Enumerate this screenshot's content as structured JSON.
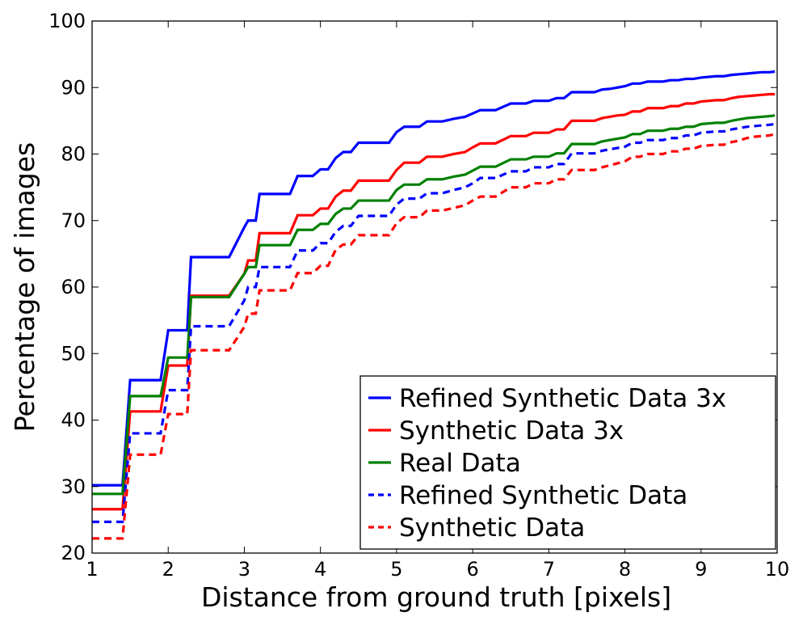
{
  "chart_data": {
    "type": "line",
    "title": "",
    "xlabel": "Distance from ground truth [pixels]",
    "ylabel": "Percentage of images",
    "xlim": [
      1,
      10
    ],
    "ylim": [
      20,
      100
    ],
    "xticks": [
      1,
      2,
      3,
      4,
      5,
      6,
      7,
      8,
      9,
      10
    ],
    "yticks": [
      20,
      30,
      40,
      50,
      60,
      70,
      80,
      90,
      100
    ],
    "grid": false,
    "legend_position": "lower-right",
    "series": [
      {
        "name": "Refined Synthetic Data 3x",
        "color": "#0000ff",
        "style": "solid",
        "x": [
          1.0,
          1.4,
          1.5,
          1.9,
          2.0,
          2.25,
          2.3,
          2.8,
          3.0,
          3.05,
          3.15,
          3.2,
          3.6,
          3.7,
          3.9,
          4.0,
          4.1,
          4.2,
          4.3,
          4.4,
          4.5,
          4.9,
          5.0,
          5.1,
          5.3,
          5.4,
          5.6,
          5.75,
          5.9,
          6.0,
          6.1,
          6.3,
          6.5,
          6.7,
          6.8,
          7.0,
          7.1,
          7.2,
          7.3,
          7.6,
          7.7,
          7.8,
          7.9,
          8.0,
          8.1,
          8.2,
          8.3,
          8.5,
          8.6,
          8.7,
          8.8,
          8.9,
          9.0,
          9.2,
          9.3,
          9.4,
          9.5,
          9.6,
          9.7,
          9.8,
          9.9,
          9.97
        ],
        "y": [
          30.2,
          30.2,
          46.0,
          46.0,
          53.5,
          53.5,
          64.5,
          64.5,
          69.0,
          70.0,
          70.0,
          74.0,
          74.0,
          76.7,
          76.7,
          77.7,
          77.7,
          79.4,
          80.3,
          80.3,
          81.7,
          81.7,
          83.3,
          84.1,
          84.1,
          84.9,
          84.9,
          85.3,
          85.6,
          86.1,
          86.6,
          86.6,
          87.6,
          87.6,
          88.0,
          88.0,
          88.4,
          88.4,
          89.3,
          89.3,
          89.7,
          89.8,
          90.0,
          90.2,
          90.6,
          90.6,
          90.9,
          90.9,
          91.1,
          91.1,
          91.3,
          91.3,
          91.5,
          91.7,
          91.7,
          91.9,
          92.0,
          92.1,
          92.2,
          92.3,
          92.3,
          92.4
        ]
      },
      {
        "name": "Synthetic Data 3x",
        "color": "#ff0000",
        "style": "solid",
        "x": [
          1.0,
          1.4,
          1.5,
          1.9,
          2.0,
          2.25,
          2.3,
          2.8,
          3.0,
          3.05,
          3.15,
          3.2,
          3.6,
          3.7,
          3.9,
          4.0,
          4.1,
          4.2,
          4.3,
          4.4,
          4.5,
          4.9,
          5.0,
          5.1,
          5.3,
          5.4,
          5.6,
          5.75,
          5.9,
          6.0,
          6.1,
          6.3,
          6.5,
          6.7,
          6.8,
          7.0,
          7.1,
          7.2,
          7.3,
          7.6,
          7.7,
          7.8,
          7.9,
          8.0,
          8.1,
          8.2,
          8.3,
          8.5,
          8.6,
          8.7,
          8.8,
          8.9,
          9.0,
          9.2,
          9.3,
          9.4,
          9.5,
          9.6,
          9.7,
          9.8,
          9.9,
          9.97
        ],
        "y": [
          26.6,
          26.6,
          41.3,
          41.3,
          48.2,
          48.2,
          58.7,
          58.7,
          62.0,
          64.0,
          64.0,
          68.1,
          68.1,
          70.8,
          70.8,
          71.8,
          71.8,
          73.6,
          74.5,
          74.5,
          76.0,
          76.0,
          77.6,
          78.7,
          78.7,
          79.6,
          79.6,
          80.0,
          80.3,
          81.0,
          81.6,
          81.6,
          82.7,
          82.7,
          83.2,
          83.2,
          83.7,
          83.7,
          85.0,
          85.0,
          85.4,
          85.6,
          85.8,
          85.9,
          86.4,
          86.4,
          86.9,
          86.9,
          87.2,
          87.2,
          87.6,
          87.6,
          87.9,
          88.1,
          88.1,
          88.4,
          88.6,
          88.7,
          88.8,
          88.9,
          89.0,
          89.0
        ]
      },
      {
        "name": "Real Data",
        "color": "#008000",
        "style": "solid",
        "x": [
          1.0,
          1.4,
          1.5,
          1.9,
          2.0,
          2.25,
          2.3,
          2.8,
          3.0,
          3.05,
          3.15,
          3.2,
          3.6,
          3.7,
          3.9,
          4.0,
          4.1,
          4.2,
          4.3,
          4.4,
          4.5,
          4.9,
          5.0,
          5.1,
          5.3,
          5.4,
          5.6,
          5.75,
          5.9,
          6.0,
          6.1,
          6.3,
          6.5,
          6.7,
          6.8,
          7.0,
          7.1,
          7.2,
          7.3,
          7.6,
          7.7,
          7.8,
          7.9,
          8.0,
          8.1,
          8.2,
          8.3,
          8.5,
          8.6,
          8.7,
          8.8,
          8.9,
          9.0,
          9.2,
          9.3,
          9.4,
          9.5,
          9.6,
          9.7,
          9.8,
          9.9,
          9.97
        ],
        "y": [
          28.9,
          28.9,
          43.6,
          43.6,
          49.4,
          49.4,
          58.5,
          58.5,
          62.0,
          63.0,
          63.0,
          66.3,
          66.3,
          68.6,
          68.6,
          69.5,
          69.5,
          71.0,
          71.8,
          71.8,
          73.0,
          73.0,
          74.6,
          75.4,
          75.4,
          76.2,
          76.2,
          76.6,
          76.9,
          77.5,
          78.1,
          78.1,
          79.2,
          79.2,
          79.6,
          79.6,
          80.1,
          80.1,
          81.5,
          81.5,
          81.9,
          82.1,
          82.3,
          82.5,
          83.0,
          83.0,
          83.5,
          83.5,
          83.8,
          83.8,
          84.1,
          84.1,
          84.5,
          84.7,
          84.7,
          85.0,
          85.2,
          85.4,
          85.5,
          85.6,
          85.7,
          85.8
        ]
      },
      {
        "name": "Refined Synthetic Data",
        "color": "#0000ff",
        "style": "dashed",
        "x": [
          1.0,
          1.4,
          1.5,
          1.9,
          2.0,
          2.25,
          2.3,
          2.8,
          3.0,
          3.05,
          3.15,
          3.2,
          3.6,
          3.7,
          3.9,
          4.0,
          4.1,
          4.2,
          4.3,
          4.4,
          4.5,
          4.9,
          5.0,
          5.1,
          5.3,
          5.4,
          5.6,
          5.75,
          5.9,
          6.0,
          6.1,
          6.3,
          6.5,
          6.7,
          6.8,
          7.0,
          7.1,
          7.2,
          7.3,
          7.6,
          7.7,
          7.8,
          7.9,
          8.0,
          8.1,
          8.2,
          8.3,
          8.5,
          8.6,
          8.7,
          8.8,
          8.9,
          9.0,
          9.2,
          9.3,
          9.4,
          9.5,
          9.6,
          9.7,
          9.8,
          9.9,
          9.97
        ],
        "y": [
          24.7,
          24.7,
          38.0,
          38.0,
          44.5,
          44.5,
          54.1,
          54.1,
          58.0,
          60.0,
          60.0,
          63.0,
          63.0,
          65.5,
          65.5,
          66.6,
          66.6,
          68.3,
          69.2,
          69.2,
          70.7,
          70.7,
          72.4,
          73.3,
          73.3,
          74.1,
          74.1,
          74.6,
          75.0,
          75.6,
          76.4,
          76.4,
          77.4,
          77.4,
          78.0,
          78.0,
          78.5,
          78.5,
          80.1,
          80.1,
          80.5,
          80.7,
          80.9,
          81.1,
          81.7,
          81.7,
          82.1,
          82.1,
          82.4,
          82.4,
          82.8,
          82.8,
          83.2,
          83.4,
          83.4,
          83.7,
          83.9,
          84.1,
          84.2,
          84.3,
          84.4,
          84.5
        ]
      },
      {
        "name": "Synthetic Data",
        "color": "#ff0000",
        "style": "dashed",
        "x": [
          1.0,
          1.4,
          1.5,
          1.9,
          2.0,
          2.25,
          2.3,
          2.8,
          3.0,
          3.05,
          3.15,
          3.2,
          3.6,
          3.7,
          3.9,
          4.0,
          4.1,
          4.2,
          4.3,
          4.4,
          4.5,
          4.9,
          5.0,
          5.1,
          5.3,
          5.4,
          5.6,
          5.75,
          5.9,
          6.0,
          6.1,
          6.3,
          6.5,
          6.7,
          6.8,
          7.0,
          7.1,
          7.2,
          7.3,
          7.6,
          7.7,
          7.8,
          7.9,
          8.0,
          8.1,
          8.2,
          8.3,
          8.5,
          8.6,
          8.7,
          8.8,
          8.9,
          9.0,
          9.2,
          9.3,
          9.4,
          9.5,
          9.6,
          9.7,
          9.8,
          9.9,
          9.97
        ],
        "y": [
          22.2,
          22.2,
          34.8,
          34.8,
          40.9,
          40.9,
          50.5,
          50.5,
          54.0,
          56.0,
          56.0,
          59.5,
          59.5,
          62.1,
          62.1,
          63.2,
          63.2,
          65.6,
          66.4,
          66.4,
          67.8,
          67.8,
          69.6,
          70.5,
          70.5,
          71.5,
          71.5,
          71.9,
          72.3,
          73.0,
          73.6,
          73.6,
          75.0,
          75.0,
          75.6,
          75.6,
          76.2,
          76.2,
          77.6,
          77.6,
          78.0,
          78.3,
          78.6,
          78.9,
          79.6,
          79.6,
          80.0,
          80.0,
          80.4,
          80.4,
          80.8,
          80.8,
          81.2,
          81.4,
          81.4,
          81.8,
          82.0,
          82.4,
          82.6,
          82.7,
          82.8,
          83.0
        ]
      }
    ]
  }
}
